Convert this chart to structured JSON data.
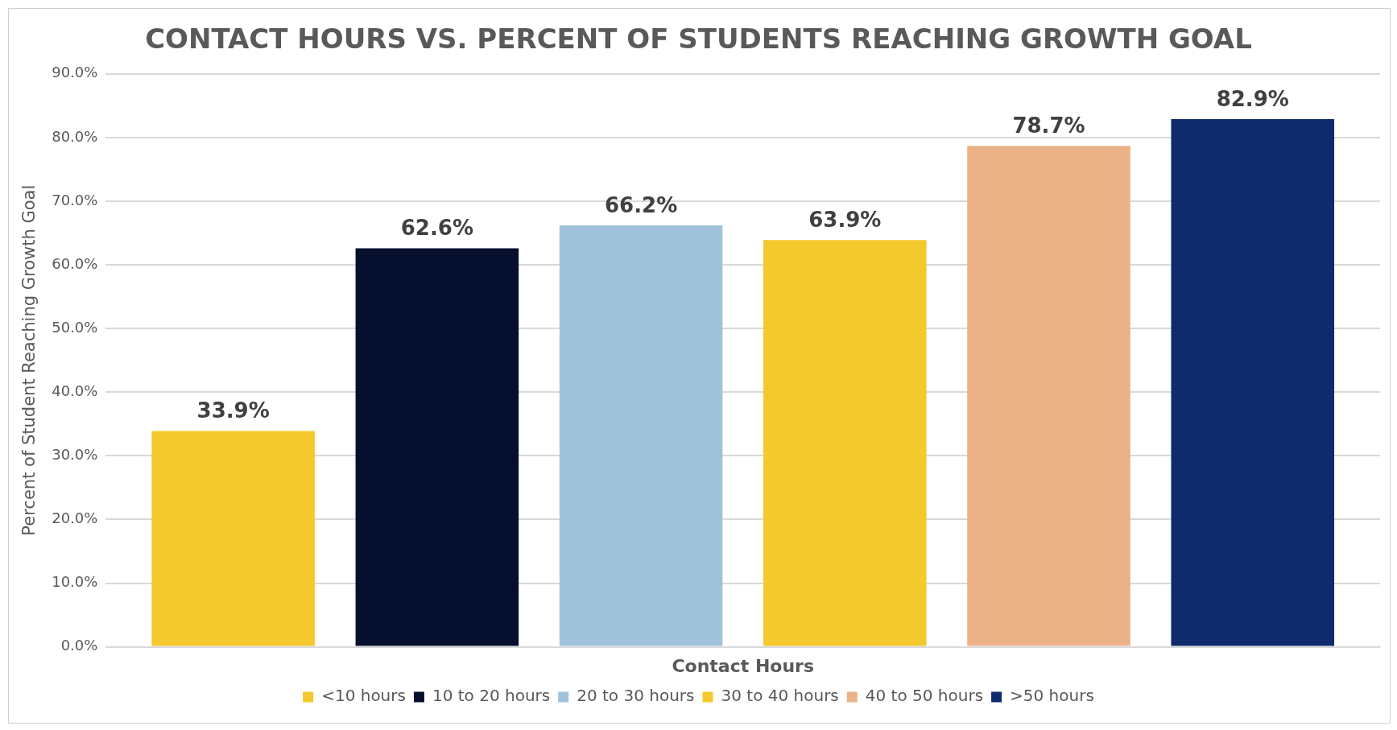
{
  "chart_data": {
    "type": "bar",
    "title": "CONTACT HOURS VS. PERCENT OF STUDENTS REACHING GROWTH GOAL",
    "xlabel": "Contact Hours",
    "ylabel": "Percent of Student Reaching Growth Goal",
    "categories": [
      null
    ],
    "series": [
      {
        "name": "<10 hours",
        "color": "#f4c92d",
        "values": [
          33.9
        ],
        "value_labels": [
          "33.9%"
        ]
      },
      {
        "name": "10 to 20 hours",
        "color": "#06102e",
        "values": [
          62.6
        ],
        "value_labels": [
          "62.6%"
        ]
      },
      {
        "name": "20 to 30 hours",
        "color": "#a0c3dc",
        "values": [
          66.2
        ],
        "value_labels": [
          "66.2%"
        ]
      },
      {
        "name": "30 to 40 hours",
        "color": "#f4c92d",
        "values": [
          63.9
        ],
        "value_labels": [
          "63.9%"
        ]
      },
      {
        "name": "40 to 50 hours",
        "color": "#ebb287",
        "values": [
          78.7
        ],
        "value_labels": [
          "78.7%"
        ]
      },
      {
        "name": ">50 hours",
        "color": "#0f2b6e",
        "values": [
          82.9
        ],
        "value_labels": [
          "82.9%"
        ]
      }
    ],
    "ylim": [
      0,
      90
    ],
    "yticks": [
      {
        "value": 0,
        "label": "0.0%"
      },
      {
        "value": 10,
        "label": "10.0%"
      },
      {
        "value": 20,
        "label": "20.0%"
      },
      {
        "value": 30,
        "label": "30.0%"
      },
      {
        "value": 40,
        "label": "40.0%"
      },
      {
        "value": 50,
        "label": "50.0%"
      },
      {
        "value": 60,
        "label": "60.0%"
      },
      {
        "value": 70,
        "label": "70.0%"
      },
      {
        "value": 80,
        "label": "80.0%"
      },
      {
        "value": 90,
        "label": "90.0%"
      }
    ],
    "grid": "y",
    "legend": "bottom"
  }
}
